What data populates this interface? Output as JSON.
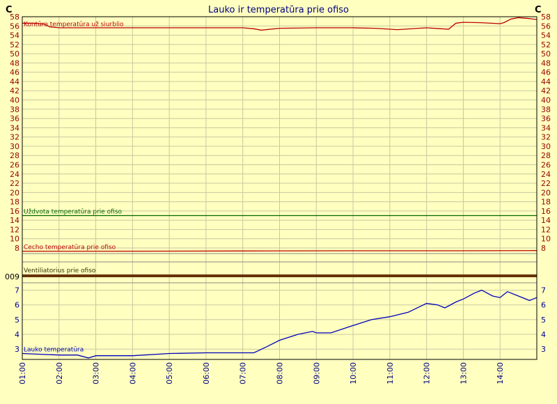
{
  "chart_data": {
    "type": "line",
    "title": "Lauko ir temperatūra prie ofiso",
    "unit_label": "C",
    "x_ticks": [
      "01:00",
      "02:00",
      "03:00",
      "04:00",
      "05:00",
      "06:00",
      "07:00",
      "08:00",
      "09:00",
      "10:00",
      "11:00",
      "12:00",
      "13:00",
      "14:00"
    ],
    "panels": [
      {
        "ylim": [
          8,
          58
        ],
        "y_ticks": [
          58,
          56,
          54,
          52,
          50,
          48,
          46,
          44,
          42,
          40,
          38,
          36,
          34,
          32,
          30,
          28,
          26,
          24,
          22,
          20,
          18,
          16,
          14,
          12,
          10,
          8
        ],
        "tick_color": "#990000",
        "series": [
          {
            "name": "Kontūro temperatūra už siurblio",
            "color": "#bb0000",
            "x": [
              1.0,
              1.3,
              1.6,
              1.75,
              2.0,
              3.0,
              4.0,
              5.0,
              6.0,
              7.0,
              7.3,
              7.5,
              8.0,
              9.0,
              10.0,
              10.6,
              11.0,
              11.2,
              12.0,
              12.4,
              12.6,
              12.8,
              13.0,
              13.5,
              14.0,
              14.1,
              14.3,
              14.5,
              14.8,
              15.0
            ],
            "y": [
              56.6,
              56.6,
              56.4,
              55.8,
              55.6,
              55.6,
              55.6,
              55.6,
              55.6,
              55.6,
              55.4,
              55.1,
              55.5,
              55.6,
              55.6,
              55.5,
              55.3,
              55.2,
              55.6,
              55.4,
              55.3,
              56.6,
              56.8,
              56.7,
              56.5,
              56.7,
              57.5,
              57.8,
              57.6,
              57.4
            ]
          },
          {
            "name": "Uždvota temperatūra prie ofiso",
            "color": "#006600",
            "x": [
              1.0,
              15.0
            ],
            "y": [
              15,
              15
            ]
          },
          {
            "name": "Cecho temperatūra prie ofiso",
            "color": "#bb0000",
            "x": [
              1.0,
              4.0,
              7.0,
              10.0,
              13.0,
              15.0
            ],
            "y": [
              7.3,
              7.3,
              7.35,
              7.4,
              7.4,
              7.45
            ]
          }
        ]
      },
      {
        "y_ticks": [
          "009"
        ],
        "series": [
          {
            "name": "Ventiliatorius prie ofiso",
            "color": "#663300",
            "x": [
              1.0,
              15.0
            ],
            "y": [
              9,
              9
            ]
          }
        ]
      },
      {
        "ylim": [
          2.3,
          7.5
        ],
        "y_ticks": [
          7,
          6,
          5,
          4,
          3
        ],
        "tick_color": "#000099",
        "series": [
          {
            "name": "Lauko temperatūra",
            "color": "#0000bb",
            "x": [
              1.0,
              1.5,
              2.0,
              2.5,
              2.8,
              3.0,
              3.5,
              4.0,
              5.0,
              6.0,
              7.0,
              7.3,
              7.6,
              8.0,
              8.5,
              8.9,
              9.0,
              9.4,
              10.0,
              10.5,
              11.0,
              11.5,
              12.0,
              12.3,
              12.5,
              12.8,
              13.0,
              13.3,
              13.5,
              13.8,
              14.0,
              14.2,
              14.5,
              14.8,
              15.0
            ],
            "y": [
              2.7,
              2.65,
              2.6,
              2.6,
              2.4,
              2.55,
              2.55,
              2.55,
              2.7,
              2.75,
              2.75,
              2.75,
              3.1,
              3.6,
              4.0,
              4.2,
              4.1,
              4.1,
              4.6,
              5.0,
              5.2,
              5.5,
              6.1,
              6.0,
              5.8,
              6.2,
              6.4,
              6.8,
              7.0,
              6.6,
              6.5,
              6.9,
              6.6,
              6.3,
              6.5
            ]
          }
        ]
      }
    ]
  }
}
